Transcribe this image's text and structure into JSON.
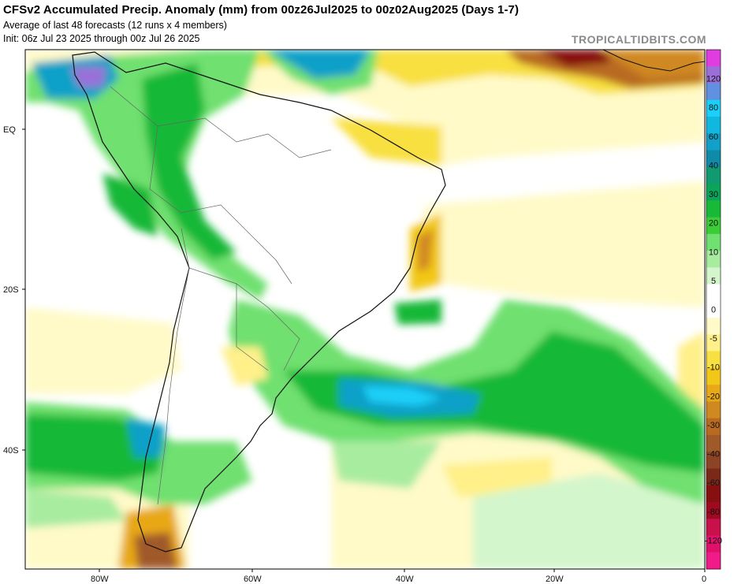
{
  "header": {
    "title": "CFSv2 Accumulated Precip. Anomaly (mm) from 00z26Jul2025 to 00z02Aug2025 (Days 1-7)",
    "line2": "Average of last 48 forecasts (12 runs x 4 members)",
    "line3": "Init: 06z Jul 23 2025 through 00z Jul 26 2025",
    "credit": "TROPICALTIDBITS.COM"
  },
  "axes": {
    "lat_labels": [
      "EQ",
      "20S",
      "40S"
    ],
    "lon_labels": [
      "80W",
      "60W",
      "40W",
      "20W",
      "0"
    ]
  },
  "colorbar": {
    "labels": [
      "120",
      "80",
      "60",
      "40",
      "30",
      "20",
      "10",
      "5",
      "0",
      "-5",
      "-10",
      "-20",
      "-30",
      "-40",
      "-60",
      "-80",
      "-120"
    ],
    "colors": [
      "#e03ce0",
      "#9a70d8",
      "#6090e0",
      "#1ad0f8",
      "#10b8e0",
      "#10a0c8",
      "#0f8aa8",
      "#109a70",
      "#0aa55a",
      "#18b838",
      "#3ccc38",
      "#70e070",
      "#a8eca0",
      "#d4f6cc",
      "#ffffff",
      "#ffffff",
      "#fffac8",
      "#fff08a",
      "#f8e040",
      "#f2c818",
      "#e8a818",
      "#d08820",
      "#b86a20",
      "#a05a2a",
      "#8c4424",
      "#7a2818",
      "#861010",
      "#a00a20",
      "#c8104a",
      "#e0106a",
      "#f01a8a"
    ]
  },
  "map": {
    "description_colors": {
      "wet": "#18b838",
      "very_wet": "#10a0c8",
      "dry": "#f8e040",
      "very_dry": "#8c4424"
    }
  }
}
